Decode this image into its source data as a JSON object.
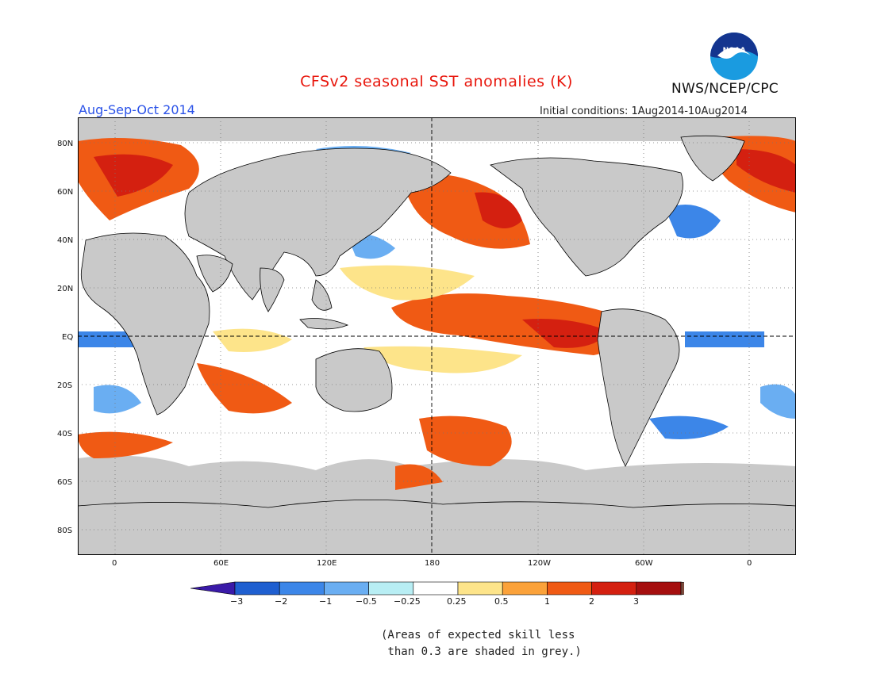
{
  "header": {
    "title": "CFSv2 seasonal SST anomalies (K)",
    "season": "Aug-Sep-Oct 2014",
    "initial_conditions": "Initial conditions: 1Aug2014-10Aug2014",
    "agency": "NWS/NCEP/CPC",
    "logo_text": "NOAA"
  },
  "map": {
    "lat_labels": [
      "80N",
      "60N",
      "40N",
      "20N",
      "EQ",
      "20S",
      "40S",
      "60S",
      "80S"
    ],
    "lon_labels": [
      "0",
      "60E",
      "120E",
      "180",
      "120W",
      "60W",
      "0"
    ]
  },
  "colorbar": {
    "labels": [
      "−3",
      "−2",
      "−1",
      "−0.5",
      "−0.25",
      "0.25",
      "0.5",
      "1",
      "2",
      "3"
    ],
    "colors": [
      "#3a1aa8",
      "#1f5fd0",
      "#3c86e8",
      "#6aaef2",
      "#b8eef4",
      "#ffffff",
      "#fde48a",
      "#fba23a",
      "#f05a14",
      "#d42010",
      "#a50f0f",
      "#7a4a3c"
    ]
  },
  "note": "(Areas of expected skill less\n than 0.3 are shaded in grey.)"
}
